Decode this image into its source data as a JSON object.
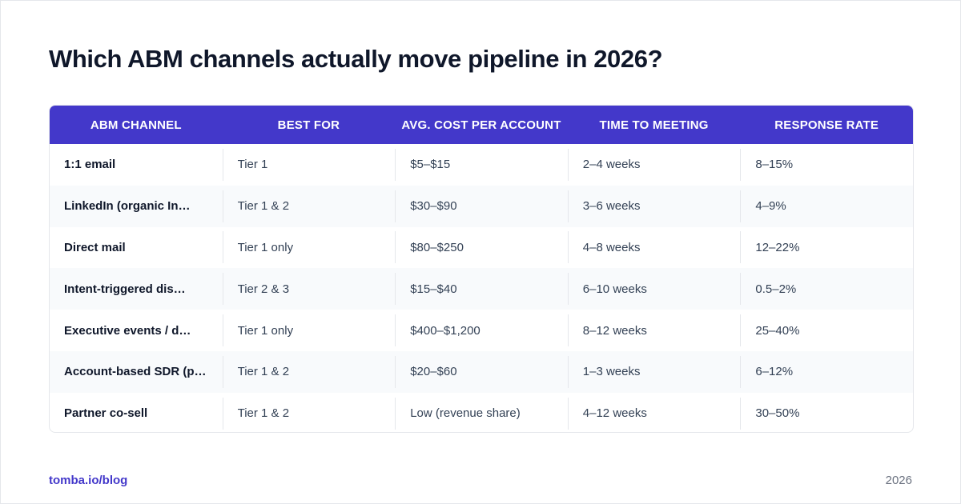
{
  "title": "Which ABM channels actually move pipeline in 2026?",
  "table": {
    "headers": [
      "ABM CHANNEL",
      "BEST FOR",
      "AVG. COST PER ACCOUNT",
      "TIME TO MEETING",
      "RESPONSE RATE"
    ],
    "rows": [
      [
        "1:1 email",
        "Tier 1",
        "$5–$15",
        "2–4 weeks",
        "8–15%"
      ],
      [
        "LinkedIn (organic In…",
        "Tier 1 & 2",
        "$30–$90",
        "3–6 weeks",
        "4–9%"
      ],
      [
        "Direct mail",
        "Tier 1 only",
        "$80–$250",
        "4–8 weeks",
        "12–22%"
      ],
      [
        "Intent-triggered dis…",
        "Tier 2 & 3",
        "$15–$40",
        "6–10 weeks",
        "0.5–2%"
      ],
      [
        "Executive events / d…",
        "Tier 1 only",
        "$400–$1,200",
        "8–12 weeks",
        "25–40%"
      ],
      [
        "Account-based SDR (p…",
        "Tier 1 & 2",
        "$20–$60",
        "1–3 weeks",
        "6–12%"
      ],
      [
        "Partner co-sell",
        "Tier 1 & 2",
        "Low (revenue share)",
        "4–12 weeks",
        "30–50%"
      ]
    ]
  },
  "footer": {
    "link": "tomba.io/blog",
    "year": "2026"
  },
  "colors": {
    "header_bg": "#4338ca",
    "accent": "#4338ca",
    "alt_row": "#f8fafc"
  }
}
